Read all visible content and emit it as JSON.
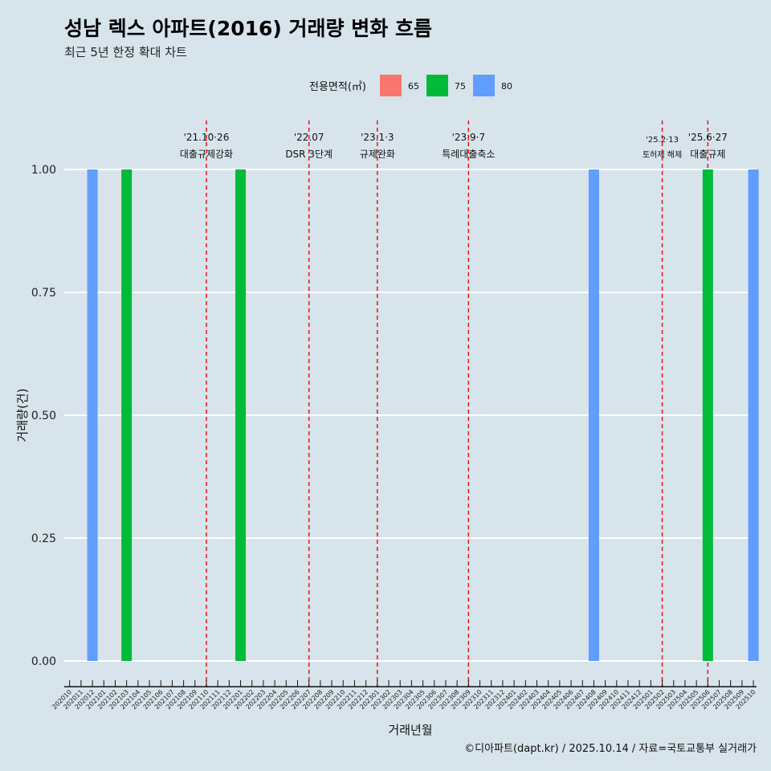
{
  "chart_data": {
    "type": "bar",
    "title": "성남 렉스 아파트(2016) 거래량 변화 흐름",
    "subtitle": "최근 5년 한정 확대 차트",
    "xlabel": "거래년월",
    "ylabel": "거래량(건)",
    "caption": "©디아파트(dapt.kr) / 2025.10.14 / 자료=국토교통부 실거래가",
    "ylim": [
      0,
      1
    ],
    "yticks": [
      "0.00",
      "0.25",
      "0.50",
      "0.75",
      "1.00"
    ],
    "legend": {
      "title": "전용면적(㎡)",
      "position": "top",
      "entries": [
        {
          "name": "65",
          "color": "#f8766d"
        },
        {
          "name": "75",
          "color": "#00ba38"
        },
        {
          "name": "80",
          "color": "#619cff"
        }
      ]
    },
    "categories": [
      "202010",
      "202011",
      "202012",
      "202101",
      "202102",
      "202103",
      "202104",
      "202105",
      "202106",
      "202107",
      "202108",
      "202109",
      "202110",
      "202111",
      "202112",
      "202201",
      "202202",
      "202203",
      "202204",
      "202205",
      "202206",
      "202207",
      "202208",
      "202209",
      "202210",
      "202211",
      "202212",
      "202301",
      "202302",
      "202303",
      "202304",
      "202305",
      "202306",
      "202307",
      "202308",
      "202309",
      "202310",
      "202311",
      "202312",
      "202401",
      "202402",
      "202403",
      "202404",
      "202405",
      "202406",
      "202407",
      "202408",
      "202409",
      "202410",
      "202411",
      "202412",
      "202501",
      "202502",
      "202503",
      "202504",
      "202505",
      "202506",
      "202507",
      "202508",
      "202509",
      "202510"
    ],
    "bars": [
      {
        "month": "202012",
        "area": "80",
        "value": 1
      },
      {
        "month": "202103",
        "area": "75",
        "value": 1
      },
      {
        "month": "202201",
        "area": "75",
        "value": 1
      },
      {
        "month": "202408",
        "area": "80",
        "value": 1
      },
      {
        "month": "202506",
        "area": "75",
        "value": 1
      },
      {
        "month": "202510",
        "area": "80",
        "value": 1
      }
    ],
    "annotations": [
      {
        "month": "202110",
        "date": "'21.10·26",
        "label": "대출규제강화"
      },
      {
        "month": "202207",
        "date": "'22.07",
        "label": "DSR 3단계"
      },
      {
        "month": "202301",
        "date": "'23.1·3",
        "label": "규제완화"
      },
      {
        "month": "202309",
        "date": "'23.9·7",
        "label": "특례대출축소"
      },
      {
        "month": "202502",
        "date": "'25.2·13",
        "label": "토허제 해제",
        "small": true
      },
      {
        "month": "202506",
        "date": "'25.6·27",
        "label": "대출규제"
      }
    ]
  }
}
